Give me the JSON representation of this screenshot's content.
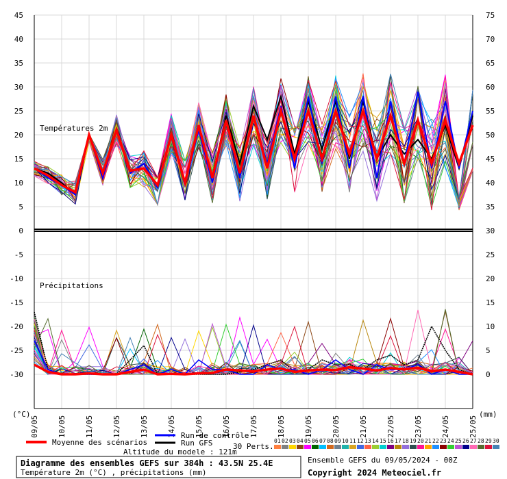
{
  "chart_data": {
    "type": "line",
    "title": "Diagramme des ensembles GEFS sur 384h : 43.5N 25.4E",
    "subtitle": "Température 2m (°C) , précipitations (mm)",
    "panel_labels": {
      "temperature": "Températures 2m",
      "precipitation": "Précipitations"
    },
    "x_tick_labels": [
      "09/05",
      "10/05",
      "11/05",
      "12/05",
      "13/05",
      "14/05",
      "15/05",
      "16/05",
      "17/05",
      "18/05",
      "19/05",
      "20/05",
      "21/05",
      "22/05",
      "23/05",
      "24/05",
      "25/05"
    ],
    "x_unit_left": "(°C)",
    "x_unit_right": "(mm)",
    "left_ticks": [
      45,
      40,
      35,
      30,
      25,
      20,
      15,
      10,
      5,
      0,
      -5,
      -10,
      -15,
      -20,
      -25,
      -30
    ],
    "right_ticks": [
      75,
      70,
      65,
      60,
      55,
      50,
      45,
      40,
      35,
      30,
      25,
      20,
      15,
      10,
      5,
      0
    ],
    "temperature_series": [
      {
        "name": "Moyenne des scénarios",
        "color": "#ff0000",
        "values": [
          13,
          11.5,
          9.5,
          8,
          20,
          12,
          21,
          12.5,
          13,
          9.5,
          20,
          10,
          22,
          11,
          23,
          12,
          24,
          13,
          25,
          15,
          25,
          15,
          25,
          16,
          25,
          15,
          24,
          14,
          23,
          14,
          23,
          14,
          22
        ]
      },
      {
        "name": "Run de contrôle",
        "color": "#0000ff",
        "values": [
          13,
          11,
          9.5,
          7.5,
          20,
          11,
          21,
          12,
          14,
          9,
          20,
          9.5,
          21,
          10,
          23,
          11,
          24,
          14,
          26,
          13,
          28,
          14,
          28,
          13,
          28,
          11,
          27,
          14,
          29,
          13,
          27,
          13,
          25
        ]
      },
      {
        "name": "Run GFS",
        "color": "#000000",
        "values": [
          13,
          12,
          10,
          7.5,
          20,
          12,
          21,
          12,
          14,
          9,
          20,
          10,
          22,
          11,
          24,
          14,
          26,
          19,
          28,
          16,
          27,
          17,
          27,
          15,
          27,
          15,
          20,
          16,
          19,
          15,
          22,
          13,
          24
        ]
      }
    ],
    "precipitation_series": [
      {
        "name": "Moyenne des scénarios",
        "color": "#ff0000",
        "values": [
          2,
          0.5,
          0,
          0,
          0.2,
          0,
          0,
          0.5,
          1,
          0,
          0.1,
          0,
          0.2,
          0.3,
          1,
          0.8,
          0.6,
          1,
          1.2,
          0.5,
          0.8,
          1,
          0.9,
          1.5,
          1.2,
          0.8,
          1.3,
          1,
          1.4,
          0.6,
          1,
          0.5,
          0
        ]
      },
      {
        "name": "Run GFS",
        "color": "#000000",
        "values": [
          13,
          1,
          0,
          0,
          0,
          0,
          0,
          3,
          6,
          0,
          0,
          0,
          0,
          0,
          0,
          0.5,
          1,
          2,
          3,
          0.5,
          1,
          3,
          2,
          2,
          1,
          3,
          4,
          2,
          3,
          10,
          5,
          1,
          0
        ]
      },
      {
        "name": "Run de contrôle",
        "color": "#0000ff",
        "values": [
          7,
          1,
          0,
          0,
          0,
          0,
          0,
          1,
          2,
          0,
          1,
          0,
          3,
          1,
          1,
          0,
          0,
          2,
          1,
          1,
          0,
          1,
          3,
          1,
          0,
          2,
          1,
          1,
          2,
          0,
          1,
          0,
          0
        ]
      }
    ],
    "legend": {
      "mean": "Moyenne des scénarios",
      "control": "Run de contrôle",
      "gfs": "Run GFS",
      "perts_label": "30 Perts.",
      "pert_numbers": [
        "01",
        "02",
        "03",
        "04",
        "05",
        "06",
        "07",
        "08",
        "09",
        "10",
        "11",
        "12",
        "13",
        "14",
        "15",
        "16",
        "17",
        "18",
        "19",
        "20",
        "21",
        "22",
        "23",
        "24",
        "25",
        "26",
        "27",
        "28",
        "29",
        "30"
      ],
      "pert_colors": [
        "#ff8040",
        "#808080",
        "#ffd700",
        "#8b4513",
        "#ff00ff",
        "#006400",
        "#00bfff",
        "#d2691e",
        "#708090",
        "#20b2aa",
        "#daa520",
        "#4169e1",
        "#ff6347",
        "#9acd32",
        "#00ced1",
        "#800080",
        "#b8860b",
        "#9370db",
        "#2f4f4f",
        "#ff1493",
        "#ffa500",
        "#1e90ff",
        "#8b0000",
        "#32cd32",
        "#ba55d3",
        "#00008b",
        "#ff69b4",
        "#556b2f",
        "#dc143c",
        "#4682b4"
      ]
    },
    "altitude": "Altitude du modele : 121m",
    "ensemble_label": "Ensemble GEFS du 09/05/2024 - 00Z",
    "copyright": "Copyright 2024 Meteociel.fr"
  }
}
